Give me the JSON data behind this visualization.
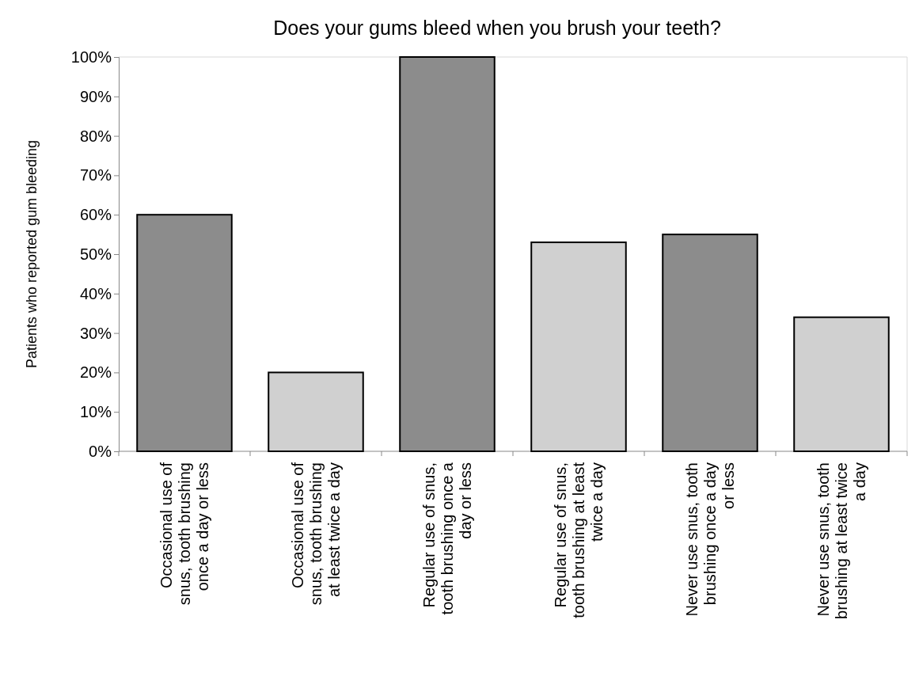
{
  "chart_data": {
    "type": "bar",
    "title": "Does your gums bleed when you brush your teeth?",
    "ylabel": "Patients who reported gum bleeding",
    "categories": [
      "Occasional use of snus, tooth brushing once a day or less",
      "Occasional use of snus, tooth brushing at least twice a day",
      "Regular use of snus, tooth brushing once a day or less",
      "Regular use of snus, tooth brushing at least twice a day",
      "Never use snus, tooth brushing once a day or less",
      "Never use snus, tooth brushing at least twice a day"
    ],
    "values": [
      60,
      20,
      100,
      53,
      55,
      34
    ],
    "colors": [
      "#8c8c8c",
      "#d0d0d0",
      "#8c8c8c",
      "#d0d0d0",
      "#8c8c8c",
      "#d0d0d0"
    ],
    "ylim": [
      0,
      100
    ],
    "yticks": [
      {
        "value": 0,
        "label": "0%"
      },
      {
        "value": 10,
        "label": "10%"
      },
      {
        "value": 20,
        "label": "20%"
      },
      {
        "value": 30,
        "label": "30%"
      },
      {
        "value": 40,
        "label": "40%"
      },
      {
        "value": 50,
        "label": "50%"
      },
      {
        "value": 60,
        "label": "60%"
      },
      {
        "value": 70,
        "label": "70%"
      },
      {
        "value": 80,
        "label": "80%"
      },
      {
        "value": 90,
        "label": "90%"
      },
      {
        "value": 100,
        "label": "100%"
      }
    ],
    "grid": false
  }
}
